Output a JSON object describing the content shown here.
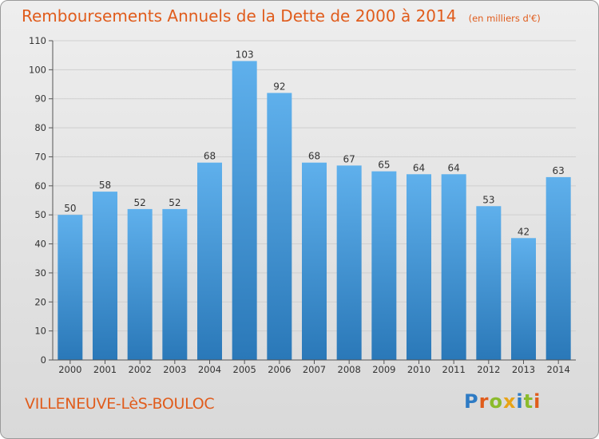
{
  "header": {
    "title": "Remboursements Annuels de la Dette de 2000 à 2014",
    "subtitle": "(en milliers d'€)"
  },
  "footer": {
    "city": "VILLENEUVE-LèS-BOULOC",
    "brand": "Proxiti",
    "brand_colors": [
      "#2e7bc4",
      "#e05c1c",
      "#8bbb2c",
      "#e8a317",
      "#2e7bc4",
      "#8bbb2c",
      "#e05c1c"
    ]
  },
  "colors": {
    "bar_top": "#5fb0ec",
    "bar_bottom": "#2a78b8",
    "title": "#e05c1c"
  },
  "chart_data": {
    "type": "bar",
    "title": "Remboursements Annuels de la Dette de 2000 à 2014",
    "categories": [
      "2000",
      "2001",
      "2002",
      "2003",
      "2004",
      "2005",
      "2006",
      "2007",
      "2008",
      "2009",
      "2010",
      "2011",
      "2012",
      "2013",
      "2014"
    ],
    "values": [
      50,
      58,
      52,
      52,
      68,
      103,
      92,
      68,
      67,
      65,
      64,
      64,
      53,
      42,
      63
    ],
    "ylim": [
      0,
      110
    ],
    "yticks": [
      0,
      10,
      20,
      30,
      40,
      50,
      60,
      70,
      80,
      90,
      100,
      110
    ],
    "grid": true
  }
}
